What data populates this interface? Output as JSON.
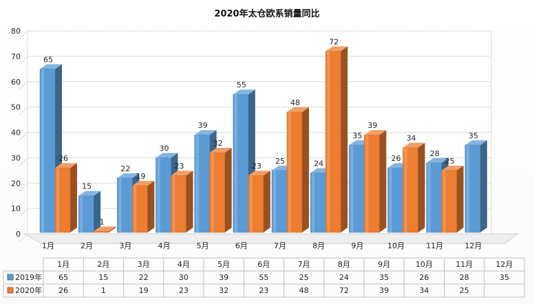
{
  "chart_data": {
    "type": "bar",
    "title": "2020年太仓欧系销量同比",
    "categories": [
      "1月",
      "2月",
      "3月",
      "4月",
      "5月",
      "6月",
      "7月",
      "8月",
      "9月",
      "10月",
      "11月",
      "12月"
    ],
    "series": [
      {
        "name": "2019年",
        "color": "#5b9bd5",
        "values": [
          65,
          15,
          22,
          30,
          39,
          55,
          25,
          24,
          35,
          26,
          28,
          35
        ]
      },
      {
        "name": "2020年",
        "color": "#ed7d31",
        "values": [
          26,
          1,
          19,
          23,
          32,
          23,
          48,
          72,
          39,
          34,
          25,
          null
        ]
      }
    ],
    "ylim": [
      0,
      80
    ],
    "yticks": [
      0,
      10,
      20,
      30,
      40,
      50,
      60,
      70,
      80
    ],
    "grid": true,
    "legend": "data-table",
    "style": "3d-clustered-column"
  }
}
